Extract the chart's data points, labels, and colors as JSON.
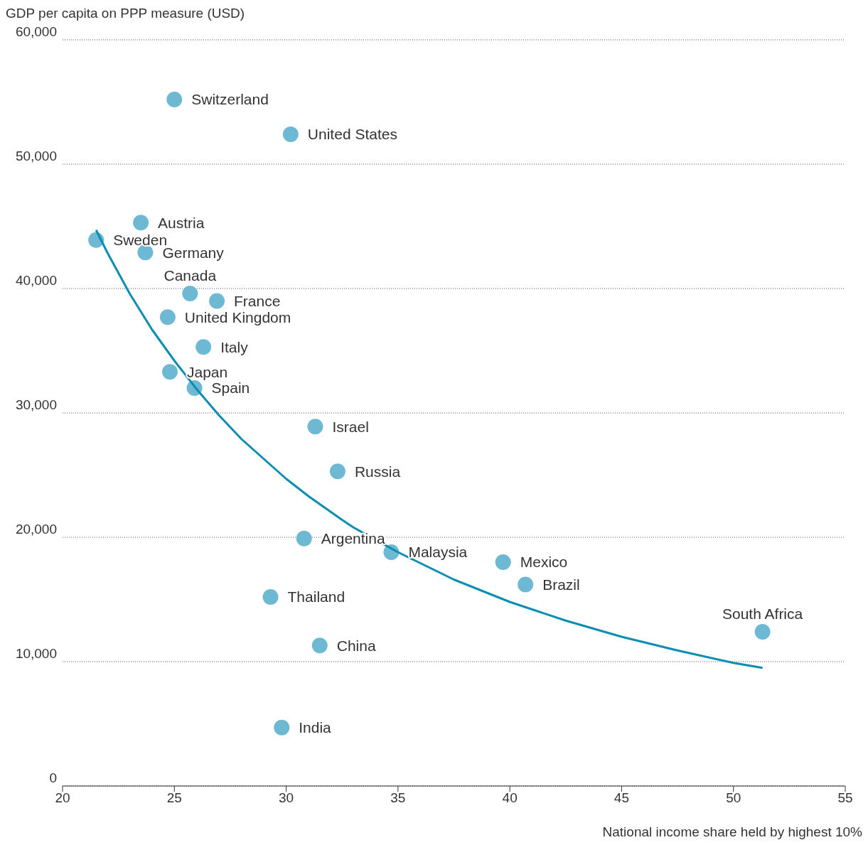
{
  "chart_data": {
    "type": "scatter",
    "xlabel": "National income share held by highest 10%",
    "ylabel": "GDP per capita on PPP measure (USD)",
    "xlim": [
      20,
      55
    ],
    "xticks": [
      20,
      25,
      30,
      35,
      40,
      45,
      50,
      55
    ],
    "ylim": [
      0,
      60000
    ],
    "yticks": [
      0,
      {
        "value": 10000,
        "label": "10,000"
      },
      {
        "value": 20000,
        "label": "20,000"
      },
      {
        "value": 30000,
        "label": "30,000"
      },
      {
        "value": 40000,
        "label": "40,000"
      },
      {
        "value": 50000,
        "label": "50,000"
      },
      {
        "value": 60000,
        "label": "60,000"
      }
    ],
    "grid": "y",
    "legend": false,
    "marker": "circle",
    "series": [
      {
        "type": "scatter",
        "color": "#6db9d3",
        "x": [
          25.0,
          30.2,
          23.5,
          21.5,
          23.7,
          25.7,
          26.9,
          24.7,
          26.3,
          24.8,
          25.9,
          31.3,
          32.3,
          30.8,
          34.7,
          39.7,
          40.7,
          29.3,
          51.3,
          31.5,
          29.8
        ],
        "values": [
          55200,
          52400,
          45300,
          43900,
          42900,
          39600,
          39000,
          37700,
          35300,
          33300,
          32000,
          28900,
          25300,
          19900,
          18800,
          18000,
          16200,
          15200,
          12400,
          11300,
          4700
        ]
      },
      {
        "type": "line",
        "color": "#0a8db3",
        "line_style": "solid",
        "marker": "none",
        "x": [
          21.5,
          22,
          23,
          24,
          25,
          26,
          27,
          28,
          30,
          31,
          32.5,
          33,
          35,
          37.5,
          40,
          42.5,
          45,
          47.5,
          50,
          51.3
        ],
        "values": [
          44700,
          42900,
          39600,
          36700,
          34200,
          31900,
          29800,
          27900,
          24700,
          23300,
          21400,
          20800,
          18800,
          16600,
          14800,
          13300,
          12000,
          10900,
          9900,
          9500
        ]
      }
    ],
    "annotations": [
      {
        "text": "Switzerland",
        "x": 25.0,
        "y": 55200
      },
      {
        "text": "United States",
        "x": 30.2,
        "y": 52400
      },
      {
        "text": "Austria",
        "x": 23.5,
        "y": 45300
      },
      {
        "text": "Sweden",
        "x": 21.5,
        "y": 43900
      },
      {
        "text": "Germany",
        "x": 23.7,
        "y": 42900
      },
      {
        "text": "Canada",
        "x": 25.7,
        "y": 39600
      },
      {
        "text": "France",
        "x": 26.9,
        "y": 39000
      },
      {
        "text": "United Kingdom",
        "x": 24.7,
        "y": 37700
      },
      {
        "text": "Italy",
        "x": 26.3,
        "y": 35300
      },
      {
        "text": "Japan",
        "x": 24.8,
        "y": 33300
      },
      {
        "text": "Spain",
        "x": 25.9,
        "y": 32000
      },
      {
        "text": "Israel",
        "x": 31.3,
        "y": 28900
      },
      {
        "text": "Russia",
        "x": 32.3,
        "y": 25300
      },
      {
        "text": "Argentina",
        "x": 30.8,
        "y": 19900
      },
      {
        "text": "Malaysia",
        "x": 34.7,
        "y": 18800
      },
      {
        "text": "Mexico",
        "x": 39.7,
        "y": 18000
      },
      {
        "text": "Brazil",
        "x": 40.7,
        "y": 16200
      },
      {
        "text": "Thailand",
        "x": 29.3,
        "y": 15200
      },
      {
        "text": "South Africa",
        "x": 51.3,
        "y": 12400
      },
      {
        "text": "China",
        "x": 31.5,
        "y": 11300
      },
      {
        "text": "India",
        "x": 29.8,
        "y": 4700
      }
    ]
  }
}
